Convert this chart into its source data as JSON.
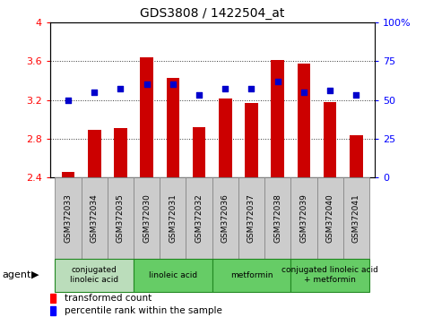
{
  "title": "GDS3808 / 1422504_at",
  "samples": [
    "GSM372033",
    "GSM372034",
    "GSM372035",
    "GSM372030",
    "GSM372031",
    "GSM372032",
    "GSM372036",
    "GSM372037",
    "GSM372038",
    "GSM372039",
    "GSM372040",
    "GSM372041"
  ],
  "bar_values": [
    2.46,
    2.89,
    2.91,
    3.64,
    3.43,
    2.92,
    3.21,
    3.17,
    3.61,
    3.57,
    3.18,
    2.84
  ],
  "dot_values": [
    50,
    55,
    57,
    60,
    60,
    53,
    57,
    57,
    62,
    55,
    56,
    53
  ],
  "bar_base": 2.4,
  "ylim_left": [
    2.4,
    4.0
  ],
  "ylim_right": [
    0,
    100
  ],
  "yticks_left": [
    2.4,
    2.8,
    3.2,
    3.6,
    4.0
  ],
  "ytick_labels_left": [
    "2.4",
    "2.8",
    "3.2",
    "3.6",
    "4"
  ],
  "yticks_right": [
    0,
    25,
    50,
    75,
    100
  ],
  "ytick_labels_right": [
    "0",
    "25",
    "50",
    "75",
    "100%"
  ],
  "bar_color": "#cc0000",
  "dot_color": "#0000cc",
  "grid_color": "#333333",
  "agent_groups": [
    {
      "label": "conjugated\nlinoleic acid",
      "start": 0,
      "end": 3,
      "color": "#bbddbb"
    },
    {
      "label": "linoleic acid",
      "start": 3,
      "end": 6,
      "color": "#66cc66"
    },
    {
      "label": "metformin",
      "start": 6,
      "end": 9,
      "color": "#66cc66"
    },
    {
      "label": "conjugated linoleic acid\n+ metformin",
      "start": 9,
      "end": 12,
      "color": "#66cc66"
    }
  ],
  "legend_bar_label": "transformed count",
  "legend_dot_label": "percentile rank within the sample",
  "sample_box_color": "#cccccc",
  "sample_box_edge": "#888888",
  "bg_color": "#ffffff"
}
